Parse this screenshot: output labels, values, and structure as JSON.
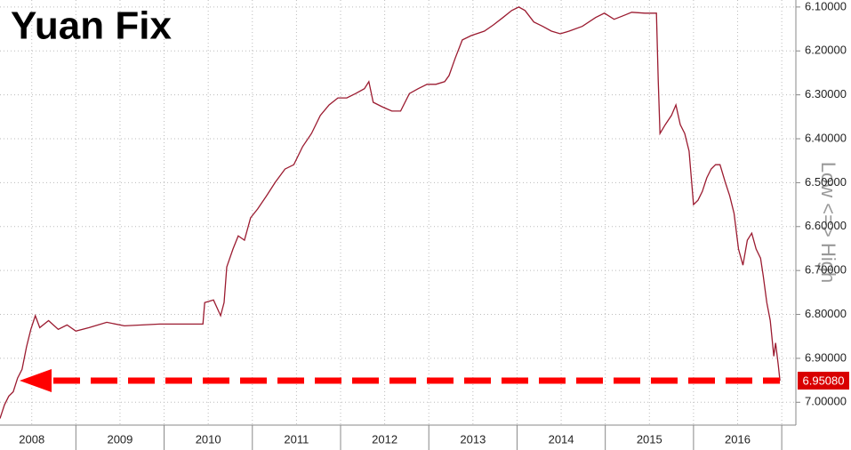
{
  "chart_data": {
    "type": "line",
    "title": "Yuan Fix",
    "annotation": "Low <=> High",
    "x": [
      2008.14,
      2008.19,
      2008.24,
      2008.29,
      2008.34,
      2008.39,
      2008.44,
      2008.49,
      2008.54,
      2008.59,
      2008.69,
      2008.8,
      2008.9,
      2009.0,
      2009.15,
      2009.35,
      2009.55,
      2009.75,
      2009.95,
      2010.16,
      2010.44,
      2010.46,
      2010.56,
      2010.64,
      2010.68,
      2010.71,
      2010.78,
      2010.84,
      2010.91,
      2010.98,
      2011.06,
      2011.16,
      2011.26,
      2011.37,
      2011.47,
      2011.57,
      2011.67,
      2011.77,
      2011.87,
      2011.97,
      2012.07,
      2012.17,
      2012.27,
      2012.32,
      2012.37,
      2012.47,
      2012.58,
      2012.68,
      2012.78,
      2012.88,
      2012.98,
      2013.08,
      2013.18,
      2013.23,
      2013.3,
      2013.38,
      2013.48,
      2013.63,
      2013.73,
      2013.84,
      2013.94,
      2014.02,
      2014.09,
      2014.19,
      2014.29,
      2014.39,
      2014.49,
      2014.59,
      2014.74,
      2014.89,
      2014.99,
      2015.1,
      2015.2,
      2015.3,
      2015.45,
      2015.58,
      2015.6,
      2015.62,
      2015.68,
      2015.75,
      2015.8,
      2015.85,
      2015.9,
      2015.95,
      2016.0,
      2016.05,
      2016.1,
      2016.15,
      2016.2,
      2016.25,
      2016.3,
      2016.36,
      2016.41,
      2016.46,
      2016.51,
      2016.56,
      2016.61,
      2016.66,
      2016.71,
      2016.76,
      2016.79,
      2016.83,
      2016.87,
      2016.91,
      2016.93,
      2016.96,
      2016.98
    ],
    "series": [
      {
        "color": "#9b1b30",
        "values": [
          7.037,
          7.006,
          6.986,
          6.976,
          6.945,
          6.925,
          6.874,
          6.834,
          6.803,
          6.83,
          6.814,
          6.834,
          6.824,
          6.838,
          6.83,
          6.818,
          6.826,
          6.824,
          6.822,
          6.822,
          6.822,
          6.773,
          6.767,
          6.803,
          6.773,
          6.692,
          6.651,
          6.621,
          6.631,
          6.58,
          6.56,
          6.53,
          6.499,
          6.469,
          6.459,
          6.418,
          6.388,
          6.347,
          6.323,
          6.307,
          6.307,
          6.297,
          6.286,
          6.27,
          6.317,
          6.327,
          6.337,
          6.337,
          6.297,
          6.286,
          6.276,
          6.276,
          6.27,
          6.256,
          6.216,
          6.175,
          6.165,
          6.155,
          6.141,
          6.124,
          6.108,
          6.1,
          6.108,
          6.134,
          6.144,
          6.155,
          6.161,
          6.155,
          6.144,
          6.124,
          6.114,
          6.128,
          6.12,
          6.112,
          6.114,
          6.114,
          6.266,
          6.388,
          6.368,
          6.347,
          6.323,
          6.368,
          6.388,
          6.428,
          6.55,
          6.54,
          6.52,
          6.489,
          6.469,
          6.459,
          6.459,
          6.499,
          6.53,
          6.57,
          6.651,
          6.688,
          6.631,
          6.615,
          6.651,
          6.672,
          6.712,
          6.773,
          6.814,
          6.895,
          6.865,
          6.915,
          6.951
        ]
      }
    ],
    "last_label": {
      "value": 6.9508,
      "label": "6.95080"
    },
    "xlim": [
      2008.14,
      2017.16
    ],
    "xticks": [
      2008,
      2009,
      2010,
      2011,
      2012,
      2013,
      2014,
      2015,
      2016
    ],
    "ylim": [
      7.05,
      6.08
    ],
    "yticks": [
      {
        "value": 6.1,
        "label": "6.10000"
      },
      {
        "value": 6.2,
        "label": "6.20000"
      },
      {
        "value": 6.3,
        "label": "6.30000"
      },
      {
        "value": 6.4,
        "label": "6.40000"
      },
      {
        "value": 6.5,
        "label": "6.50000"
      },
      {
        "value": 6.6,
        "label": "6.60000"
      },
      {
        "value": 6.7,
        "label": "6.70000"
      },
      {
        "value": 6.8,
        "label": "6.80000"
      },
      {
        "value": 6.9,
        "label": "6.90000"
      },
      {
        "value": 7.0,
        "label": "7.00000"
      }
    ],
    "grid": true,
    "arrow_color": "#ff0000"
  }
}
